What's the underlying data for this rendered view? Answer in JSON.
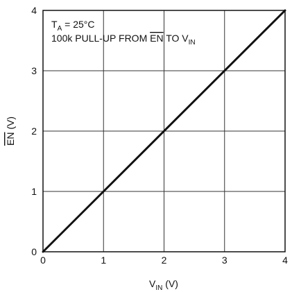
{
  "chart_data": {
    "type": "line",
    "x": [
      0,
      4
    ],
    "series": [
      {
        "values": [
          0,
          4
        ]
      }
    ],
    "xlim": [
      0,
      4
    ],
    "ylim": [
      0,
      4
    ],
    "x_ticks": [
      "0",
      "1",
      "2",
      "3",
      "4"
    ],
    "y_ticks": [
      "0",
      "1",
      "2",
      "3",
      "4"
    ],
    "xlabel": {
      "main": "V",
      "sub": "IN",
      "unit": " (V)"
    },
    "ylabel": {
      "main": "EN",
      "unit": " (V)",
      "overline": true
    },
    "grid": true,
    "annotations": {
      "line1": {
        "main": "T",
        "sub": "A",
        "rest": " = 25°C"
      },
      "line2": {
        "prefix": "100k PULL-UP FROM ",
        "overlined": "EN",
        "middle": " TO V",
        "sub": "IN"
      }
    }
  },
  "colors": {
    "series": "#111111",
    "grid": "#333333",
    "background": "#ffffff"
  }
}
